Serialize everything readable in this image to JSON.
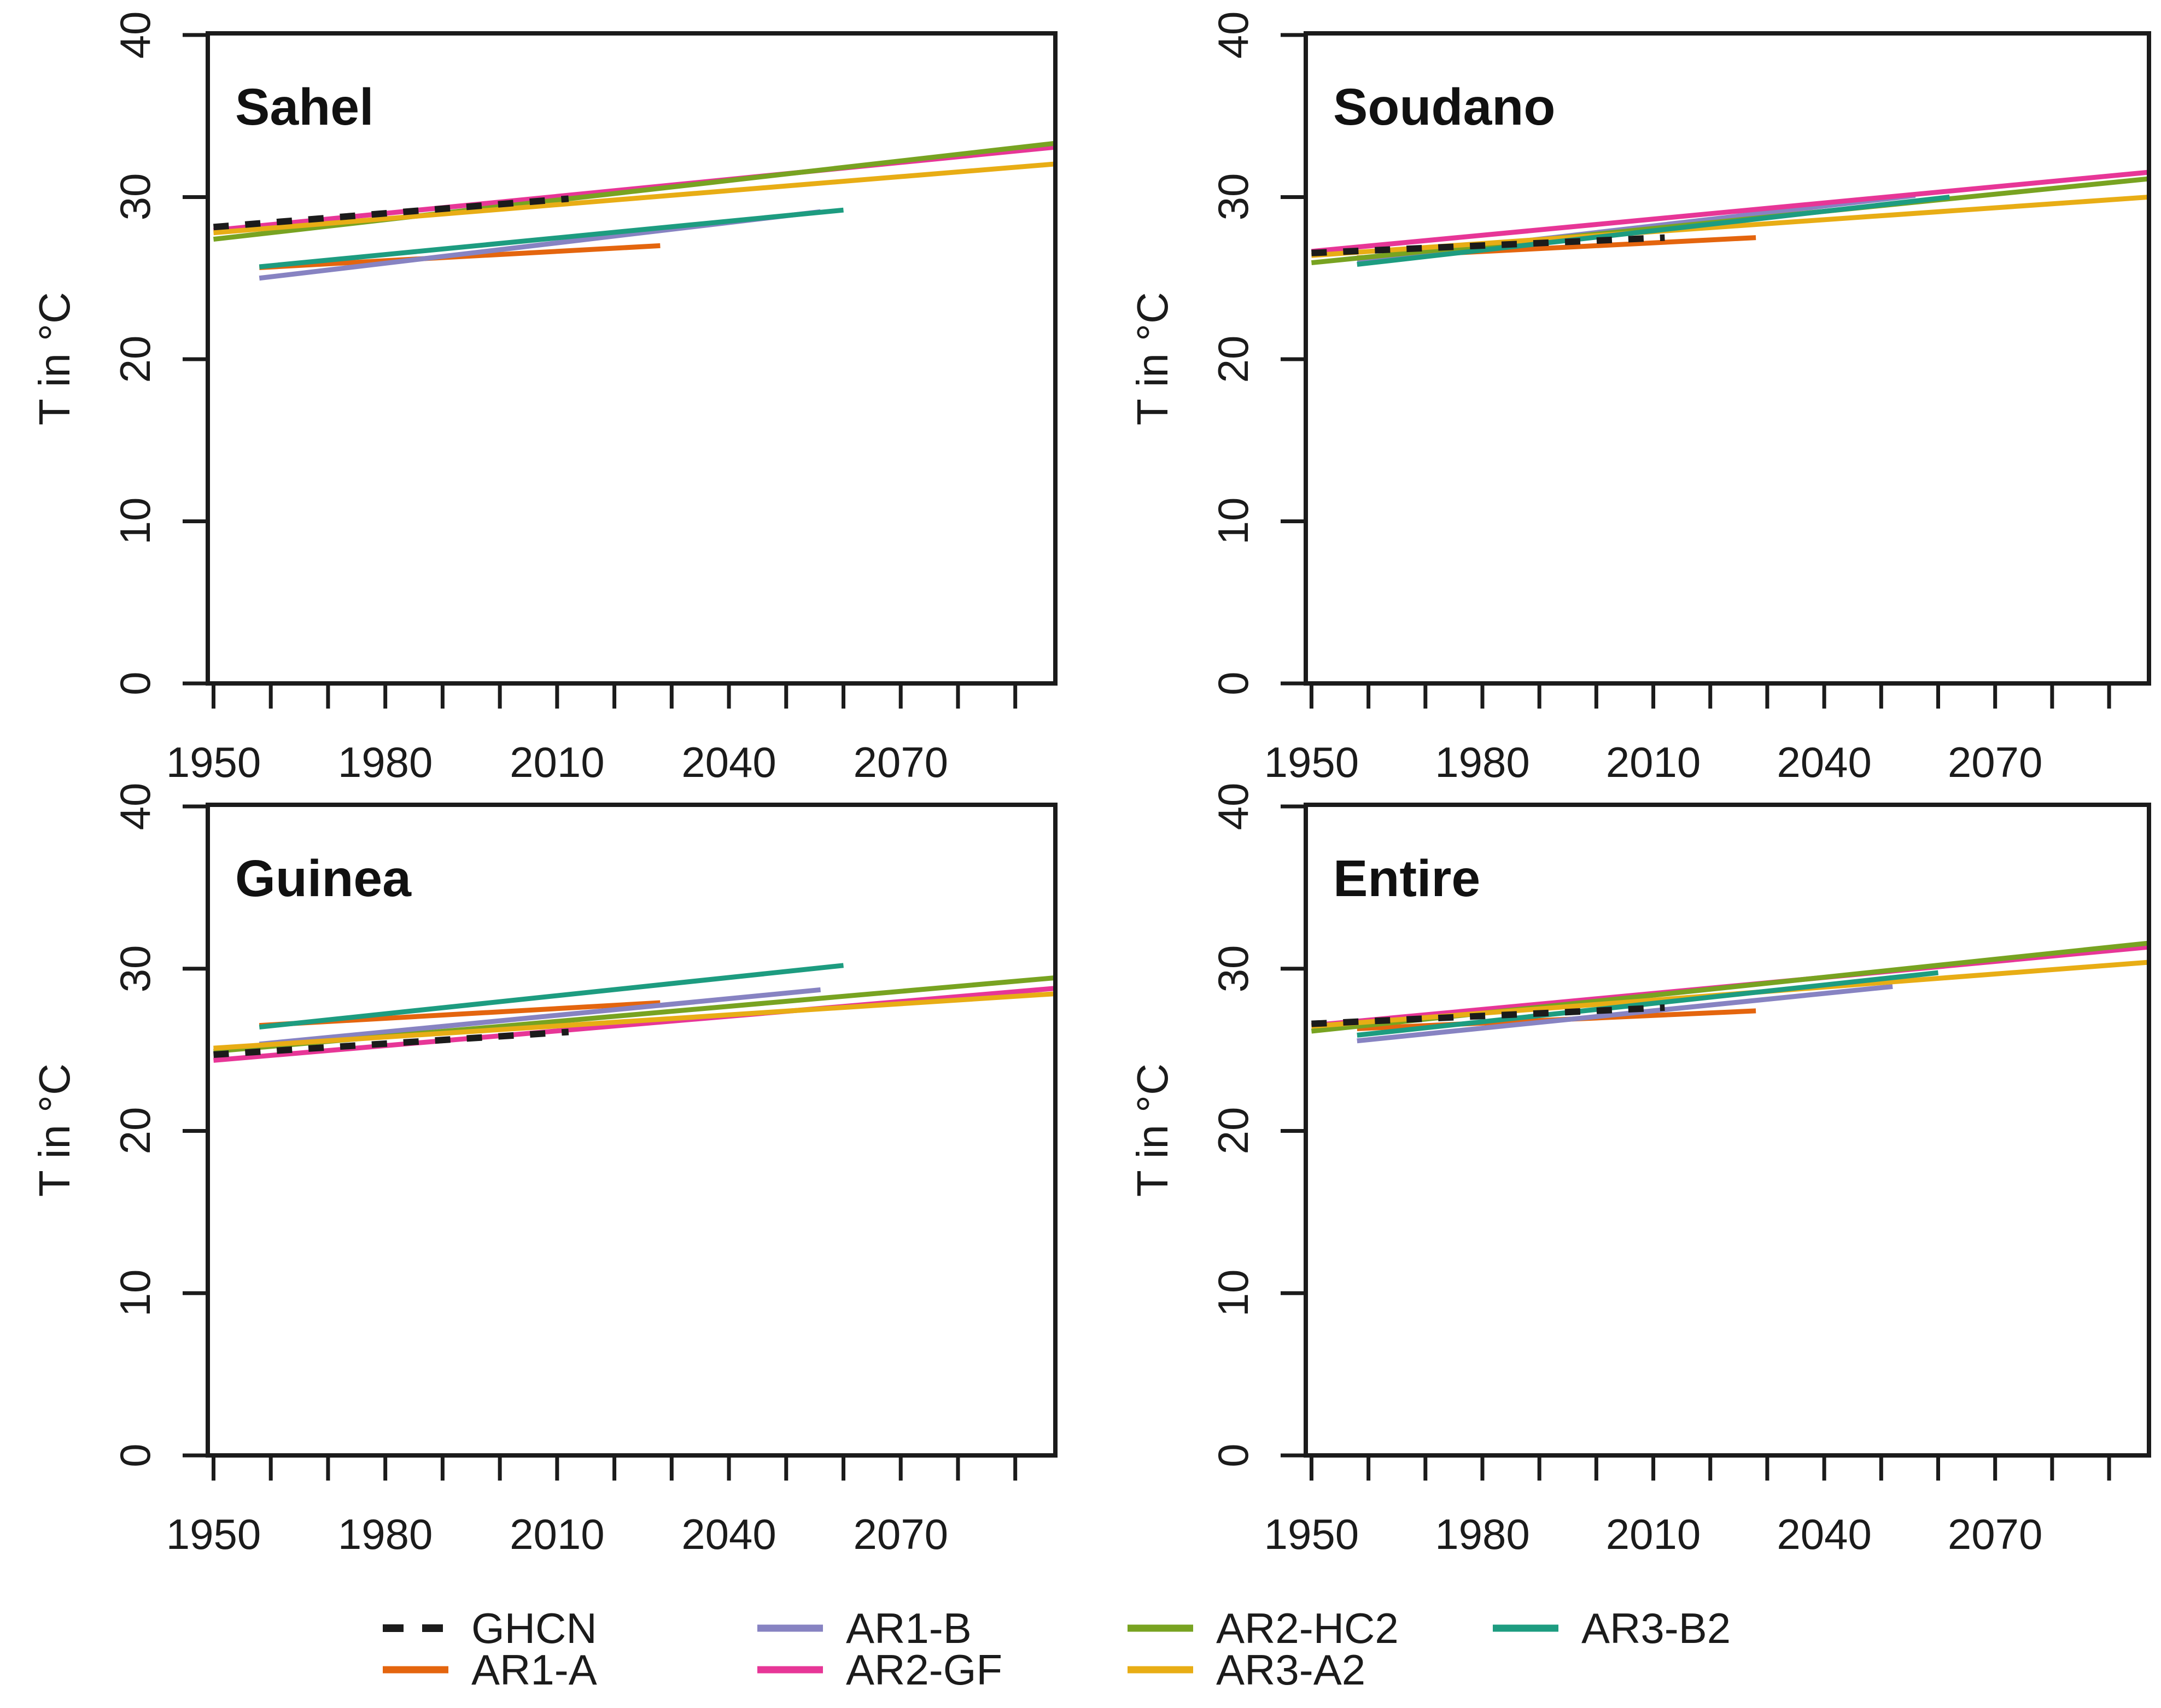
{
  "figure": {
    "background": "#ffffff",
    "text_color": "#1b1b1b"
  },
  "axes": {
    "x": {
      "domain": [
        1949,
        2097
      ],
      "minor_ticks": [
        1950,
        1960,
        1970,
        1980,
        1990,
        2000,
        2010,
        2020,
        2030,
        2040,
        2050,
        2060,
        2070,
        2080,
        2090
      ],
      "labeled_ticks": [
        1950,
        1980,
        2010,
        2040,
        2070
      ],
      "tick_labels": [
        "1950",
        "1980",
        "2010",
        "2040",
        "2070"
      ]
    },
    "y": {
      "domain": [
        0,
        40.1
      ],
      "ticks": [
        0,
        10,
        20,
        30,
        40
      ],
      "tick_labels": [
        "0",
        "10",
        "20",
        "30",
        "40"
      ],
      "label": "T in °C"
    }
  },
  "series_defs": [
    {
      "id": "GHCN",
      "label": "GHCN",
      "color": "#1b1b1b",
      "dashed": true
    },
    {
      "id": "AR1-A",
      "label": "AR1-A",
      "color": "#e4650e",
      "dashed": false
    },
    {
      "id": "AR1-B",
      "label": "AR1-B",
      "color": "#8783c2",
      "dashed": false
    },
    {
      "id": "AR2-GF",
      "label": "AR2-GF",
      "color": "#e73697",
      "dashed": false
    },
    {
      "id": "AR2-HC2",
      "label": "AR2-HC2",
      "color": "#78a321",
      "dashed": false
    },
    {
      "id": "AR3-A2",
      "label": "AR3-A2",
      "color": "#e8ad15",
      "dashed": false
    },
    {
      "id": "AR3-B2",
      "label": "AR3-B2",
      "color": "#1d9c80",
      "dashed": false
    }
  ],
  "chart_data": [
    {
      "type": "line",
      "title": "Sahel",
      "ylabel": "T in °C",
      "xlim": [
        1949,
        2097
      ],
      "ylim": [
        0,
        40.1
      ],
      "series": [
        {
          "name": "AR1-A",
          "x": [
            1958,
            2028
          ],
          "y": [
            25.65,
            27.0
          ]
        },
        {
          "name": "AR1-B",
          "x": [
            1958,
            2056
          ],
          "y": [
            25.0,
            29.1
          ]
        },
        {
          "name": "AR2-GF",
          "x": [
            1950,
            2099
          ],
          "y": [
            27.95,
            33.15
          ]
        },
        {
          "name": "AR2-HC2",
          "x": [
            1950,
            2099
          ],
          "y": [
            27.4,
            33.4
          ]
        },
        {
          "name": "AR3-A2",
          "x": [
            1950,
            2099
          ],
          "y": [
            27.8,
            32.1
          ]
        },
        {
          "name": "AR3-B2",
          "x": [
            1958,
            2060
          ],
          "y": [
            25.7,
            29.2
          ]
        },
        {
          "name": "GHCN",
          "x": [
            1950,
            2012
          ],
          "y": [
            28.15,
            29.9
          ]
        }
      ]
    },
    {
      "type": "line",
      "title": "Soudano",
      "ylabel": "T in °C",
      "xlim": [
        1949,
        2097
      ],
      "ylim": [
        0,
        40.1
      ],
      "series": [
        {
          "name": "AR1-A",
          "x": [
            1958,
            2028
          ],
          "y": [
            26.25,
            27.5
          ]
        },
        {
          "name": "AR1-B",
          "x": [
            1958,
            2056
          ],
          "y": [
            26.1,
            30.1
          ]
        },
        {
          "name": "AR2-GF",
          "x": [
            1950,
            2099
          ],
          "y": [
            26.65,
            31.6
          ]
        },
        {
          "name": "AR2-HC2",
          "x": [
            1950,
            2099
          ],
          "y": [
            25.95,
            31.2
          ]
        },
        {
          "name": "AR3-A2",
          "x": [
            1950,
            2099
          ],
          "y": [
            26.4,
            30.05
          ]
        },
        {
          "name": "AR3-B2",
          "x": [
            1958,
            2062
          ],
          "y": [
            25.85,
            30.0
          ]
        },
        {
          "name": "GHCN",
          "x": [
            1950,
            2012
          ],
          "y": [
            26.55,
            27.5
          ]
        }
      ]
    },
    {
      "type": "line",
      "title": "Guinea",
      "ylabel": "T in °C",
      "xlim": [
        1949,
        2097
      ],
      "ylim": [
        0,
        40.1
      ],
      "series": [
        {
          "name": "AR1-A",
          "x": [
            1958,
            2028
          ],
          "y": [
            26.5,
            27.9
          ]
        },
        {
          "name": "AR1-B",
          "x": [
            1958,
            2056
          ],
          "y": [
            25.35,
            28.7
          ]
        },
        {
          "name": "AR2-GF",
          "x": [
            1950,
            2099
          ],
          "y": [
            24.35,
            28.85
          ]
        },
        {
          "name": "AR2-HC2",
          "x": [
            1950,
            2099
          ],
          "y": [
            24.9,
            29.5
          ]
        },
        {
          "name": "AR3-A2",
          "x": [
            1950,
            2099
          ],
          "y": [
            25.1,
            28.5
          ]
        },
        {
          "name": "AR3-B2",
          "x": [
            1958,
            2060
          ],
          "y": [
            26.4,
            30.2
          ]
        },
        {
          "name": "GHCN",
          "x": [
            1950,
            2012
          ],
          "y": [
            24.7,
            26.1
          ]
        }
      ]
    },
    {
      "type": "line",
      "title": "Entire",
      "ylabel": "T in °C",
      "xlim": [
        1949,
        2097
      ],
      "ylim": [
        0,
        40.1
      ],
      "series": [
        {
          "name": "AR1-A",
          "x": [
            1958,
            2028
          ],
          "y": [
            26.3,
            27.4
          ]
        },
        {
          "name": "AR1-B",
          "x": [
            1958,
            2052
          ],
          "y": [
            25.55,
            28.9
          ]
        },
        {
          "name": "AR2-GF",
          "x": [
            1950,
            2099
          ],
          "y": [
            26.5,
            31.4
          ]
        },
        {
          "name": "AR2-HC2",
          "x": [
            1950,
            2099
          ],
          "y": [
            26.15,
            31.65
          ]
        },
        {
          "name": "AR3-A2",
          "x": [
            1950,
            2099
          ],
          "y": [
            26.45,
            30.45
          ]
        },
        {
          "name": "AR3-B2",
          "x": [
            1958,
            2060
          ],
          "y": [
            25.9,
            29.75
          ]
        },
        {
          "name": "GHCN",
          "x": [
            1950,
            2012
          ],
          "y": [
            26.6,
            27.6
          ]
        }
      ]
    }
  ],
  "legend": {
    "items": [
      {
        "label": "GHCN",
        "series": "GHCN",
        "row": 0,
        "col": 0
      },
      {
        "label": "AR1-B",
        "series": "AR1-B",
        "row": 0,
        "col": 1
      },
      {
        "label": "AR2-HC2",
        "series": "AR2-HC2",
        "row": 0,
        "col": 2
      },
      {
        "label": "AR3-B2",
        "series": "AR3-B2",
        "row": 0,
        "col": 3
      },
      {
        "label": "AR1-A",
        "series": "AR1-A",
        "row": 1,
        "col": 0
      },
      {
        "label": "AR2-GF",
        "series": "AR2-GF",
        "row": 1,
        "col": 1
      },
      {
        "label": "AR3-A2",
        "series": "AR3-A2",
        "row": 1,
        "col": 2
      }
    ]
  }
}
